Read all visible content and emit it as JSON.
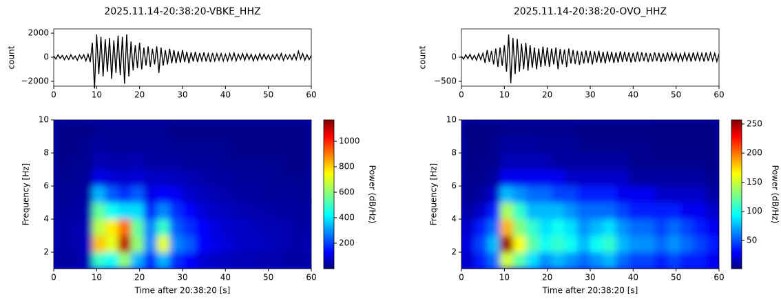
{
  "chart_data": [
    {
      "type": "line",
      "title": "2025.11.14-20:38:20-VBKE_HHZ",
      "ylabel": "count",
      "color": "#000000",
      "x": [
        0,
        0.5,
        1,
        1.5,
        2,
        2.5,
        3,
        3.5,
        4,
        4.5,
        5,
        5.5,
        6,
        6.5,
        7,
        7.5,
        8,
        8.5,
        9,
        9.5,
        10,
        10.5,
        11,
        11.5,
        12,
        12.5,
        13,
        13.5,
        14,
        14.5,
        15,
        15.5,
        16,
        16.5,
        17,
        17.5,
        18,
        18.5,
        19,
        19.5,
        20,
        20.5,
        21,
        21.5,
        22,
        22.5,
        23,
        23.5,
        24,
        24.5,
        25,
        25.5,
        26,
        26.5,
        27,
        27.5,
        28,
        28.5,
        29,
        29.5,
        30,
        30.5,
        31,
        31.5,
        32,
        32.5,
        33,
        33.5,
        34,
        34.5,
        35,
        35.5,
        36,
        36.5,
        37,
        37.5,
        38,
        38.5,
        39,
        39.5,
        40,
        40.5,
        41,
        41.5,
        42,
        42.5,
        43,
        43.5,
        44,
        44.5,
        45,
        45.5,
        46,
        46.5,
        47,
        47.5,
        48,
        48.5,
        49,
        49.5,
        50,
        50.5,
        51,
        51.5,
        52,
        52.5,
        53,
        53.5,
        54,
        54.5,
        55,
        55.5,
        56,
        56.5,
        57,
        57.5,
        58,
        58.5,
        59,
        59.5,
        60
      ],
      "values": [
        100,
        -150,
        200,
        -100,
        150,
        -200,
        120,
        -180,
        200,
        -150,
        100,
        -250,
        180,
        -120,
        200,
        -300,
        250,
        -400,
        1200,
        -2600,
        1900,
        -1400,
        1700,
        -1600,
        1500,
        -1200,
        1600,
        -1800,
        1400,
        -1300,
        1800,
        -1500,
        1700,
        -2200,
        1900,
        -1600,
        1300,
        -1100,
        1000,
        -900,
        1200,
        -1000,
        800,
        -700,
        900,
        -800,
        700,
        -600,
        900,
        -1300,
        800,
        -700,
        600,
        -600,
        700,
        -500,
        600,
        -500,
        500,
        -450,
        600,
        -400,
        450,
        -500,
        400,
        -350,
        450,
        -400,
        350,
        -300,
        400,
        -350,
        300,
        -400,
        350,
        -300,
        300,
        -250,
        300,
        -300,
        250,
        -300,
        300,
        -250,
        350,
        -300,
        250,
        -200,
        300,
        -250,
        300,
        -200,
        250,
        -300,
        200,
        -250,
        300,
        -200,
        250,
        -200,
        200,
        -250,
        200,
        -150,
        250,
        -200,
        300,
        -250,
        200,
        -150,
        200,
        -200,
        250,
        -200,
        500,
        -150,
        300,
        -250,
        200,
        -200,
        150
      ],
      "xlim": [
        0,
        60
      ],
      "ylim": [
        -2400,
        2350
      ],
      "xticks": [
        0,
        10,
        20,
        30,
        40,
        50,
        60
      ],
      "yticks": [
        {
          "value": -2000,
          "label": "−2000"
        },
        0,
        2000
      ]
    },
    {
      "type": "heatmap",
      "xlabel": "Time after 20:38:20 [s]",
      "ylabel": "Frequency [Hz]",
      "colormap": "jet",
      "xbins": [
        0,
        3,
        6,
        9,
        12,
        15,
        18,
        21,
        24,
        27,
        30,
        33,
        36,
        39,
        42,
        45,
        48,
        51,
        54,
        57,
        60
      ],
      "ybins": [
        1,
        2,
        3,
        4,
        5,
        6,
        7,
        8,
        9,
        10
      ],
      "z": [
        [
          30,
          40,
          60,
          500,
          450,
          600,
          350,
          200,
          350,
          200,
          150,
          100,
          80,
          70,
          60,
          60,
          50,
          50,
          40,
          40
        ],
        [
          40,
          50,
          70,
          800,
          700,
          1100,
          600,
          300,
          700,
          300,
          250,
          150,
          120,
          100,
          80,
          80,
          70,
          60,
          50,
          50
        ],
        [
          40,
          50,
          60,
          650,
          750,
          900,
          550,
          300,
          500,
          250,
          200,
          150,
          110,
          90,
          80,
          70,
          60,
          60,
          50,
          40
        ],
        [
          30,
          40,
          50,
          550,
          450,
          400,
          400,
          200,
          300,
          200,
          150,
          100,
          80,
          70,
          60,
          50,
          50,
          40,
          40,
          30
        ],
        [
          20,
          30,
          40,
          350,
          250,
          200,
          250,
          120,
          150,
          130,
          90,
          70,
          60,
          50,
          40,
          40,
          30,
          30,
          30,
          20
        ],
        [
          20,
          20,
          30,
          120,
          100,
          90,
          100,
          80,
          80,
          70,
          60,
          50,
          40,
          40,
          30,
          30,
          30,
          20,
          20,
          20
        ],
        [
          10,
          20,
          20,
          60,
          50,
          50,
          60,
          40,
          40,
          40,
          30,
          30,
          30,
          20,
          20,
          20,
          20,
          20,
          10,
          10
        ],
        [
          10,
          10,
          20,
          40,
          30,
          30,
          30,
          30,
          30,
          20,
          20,
          20,
          20,
          20,
          10,
          10,
          10,
          10,
          10,
          10
        ],
        [
          10,
          10,
          10,
          20,
          20,
          20,
          20,
          20,
          20,
          10,
          10,
          10,
          10,
          10,
          10,
          10,
          10,
          10,
          10,
          10
        ]
      ],
      "xlim": [
        0,
        60
      ],
      "ylim": [
        1,
        10
      ],
      "xticks": [
        0,
        10,
        20,
        30,
        40,
        50,
        60
      ],
      "yticks": [
        2,
        4,
        6,
        8,
        10
      ],
      "clim": [
        0,
        1168
      ],
      "cticks": [
        200,
        400,
        600,
        800,
        1000
      ],
      "colorbar_label": "Power (dB/Hz)"
    },
    {
      "type": "line",
      "title": "2025.11.14-20:38:20-OVO_HHZ",
      "ylabel": "count",
      "color": "#000000",
      "x": [
        0,
        0.5,
        1,
        1.5,
        2,
        2.5,
        3,
        3.5,
        4,
        4.5,
        5,
        5.5,
        6,
        6.5,
        7,
        7.5,
        8,
        8.5,
        9,
        9.5,
        10,
        10.5,
        11,
        11.5,
        12,
        12.5,
        13,
        13.5,
        14,
        14.5,
        15,
        15.5,
        16,
        16.5,
        17,
        17.5,
        18,
        18.5,
        19,
        19.5,
        20,
        20.5,
        21,
        21.5,
        22,
        22.5,
        23,
        23.5,
        24,
        24.5,
        25,
        25.5,
        26,
        26.5,
        27,
        27.5,
        28,
        28.5,
        29,
        29.5,
        30,
        30.5,
        31,
        31.5,
        32,
        32.5,
        33,
        33.5,
        34,
        34.5,
        35,
        35.5,
        36,
        36.5,
        37,
        37.5,
        38,
        38.5,
        39,
        39.5,
        40,
        40.5,
        41,
        41.5,
        42,
        42.5,
        43,
        43.5,
        44,
        44.5,
        45,
        45.5,
        46,
        46.5,
        47,
        47.5,
        48,
        48.5,
        49,
        49.5,
        50,
        50.5,
        51,
        51.5,
        52,
        52.5,
        53,
        53.5,
        54,
        54.5,
        55,
        55.5,
        56,
        56.5,
        57,
        57.5,
        58,
        58.5,
        59,
        59.5,
        60
      ],
      "values": [
        20,
        -40,
        50,
        -30,
        60,
        -50,
        40,
        -60,
        70,
        -50,
        80,
        -120,
        150,
        -100,
        130,
        -150,
        180,
        -200,
        200,
        -180,
        250,
        -300,
        470,
        -540,
        400,
        -350,
        380,
        -300,
        280,
        -250,
        300,
        -280,
        250,
        -220,
        200,
        -250,
        180,
        -200,
        220,
        -180,
        200,
        -200,
        180,
        -150,
        200,
        -250,
        170,
        -150,
        160,
        -200,
        180,
        -130,
        150,
        -140,
        130,
        -160,
        120,
        -130,
        140,
        -120,
        130,
        -150,
        120,
        -110,
        130,
        -120,
        110,
        -130,
        120,
        -100,
        110,
        -120,
        100,
        -110,
        120,
        -100,
        110,
        -90,
        100,
        -110,
        90,
        -100,
        110,
        -90,
        100,
        -80,
        90,
        -100,
        80,
        -90,
        100,
        -80,
        90,
        -100,
        80,
        -90,
        100,
        -80,
        90,
        -70,
        80,
        -90,
        70,
        -80,
        90,
        -70,
        80,
        -90,
        100,
        -80,
        90,
        -70,
        80,
        -90,
        100,
        -80,
        90,
        -70,
        80,
        -90,
        70
      ],
      "xlim": [
        0,
        60
      ],
      "ylim": [
        -600,
        586
      ],
      "xticks": [
        0,
        10,
        20,
        30,
        40,
        50,
        60
      ],
      "yticks": [
        {
          "value": -500,
          "label": "−500"
        },
        0
      ]
    },
    {
      "type": "heatmap",
      "xlabel": "Time after 20:38:20 [s]",
      "ylabel": "Frequency [Hz]",
      "colormap": "jet",
      "xbins": [
        0,
        3,
        6,
        9,
        12,
        15,
        18,
        21,
        24,
        27,
        30,
        33,
        36,
        39,
        42,
        45,
        48,
        51,
        54,
        57,
        60
      ],
      "ybins": [
        1,
        2,
        3,
        4,
        5,
        6,
        7,
        8,
        9,
        10
      ],
      "z": [
        [
          20,
          40,
          60,
          150,
          120,
          90,
          70,
          80,
          70,
          60,
          70,
          80,
          60,
          50,
          50,
          40,
          50,
          40,
          40,
          30
        ],
        [
          25,
          50,
          80,
          250,
          160,
          120,
          100,
          110,
          100,
          80,
          100,
          110,
          80,
          70,
          70,
          60,
          70,
          60,
          50,
          40
        ],
        [
          20,
          40,
          60,
          180,
          130,
          110,
          90,
          100,
          90,
          70,
          80,
          90,
          70,
          60,
          60,
          50,
          60,
          50,
          40,
          30
        ],
        [
          10,
          20,
          40,
          140,
          110,
          80,
          80,
          80,
          70,
          60,
          60,
          60,
          50,
          40,
          40,
          40,
          40,
          30,
          30,
          20
        ],
        [
          5,
          10,
          20,
          80,
          70,
          60,
          60,
          50,
          50,
          40,
          40,
          40,
          30,
          30,
          30,
          20,
          20,
          20,
          20,
          10
        ],
        [
          5,
          5,
          10,
          30,
          30,
          30,
          30,
          30,
          20,
          20,
          20,
          20,
          20,
          10,
          10,
          10,
          10,
          10,
          10,
          5
        ],
        [
          3,
          5,
          5,
          15,
          15,
          15,
          15,
          10,
          10,
          10,
          10,
          10,
          10,
          5,
          5,
          5,
          5,
          5,
          5,
          3
        ],
        [
          3,
          3,
          5,
          10,
          10,
          10,
          8,
          8,
          8,
          5,
          5,
          5,
          5,
          5,
          5,
          3,
          3,
          3,
          3,
          3
        ],
        [
          2,
          3,
          3,
          5,
          5,
          5,
          5,
          5,
          5,
          3,
          3,
          3,
          3,
          3,
          3,
          2,
          2,
          2,
          2,
          2
        ]
      ],
      "xlim": [
        0,
        60
      ],
      "ylim": [
        1,
        10
      ],
      "xticks": [
        0,
        10,
        20,
        30,
        40,
        50,
        60
      ],
      "yticks": [
        2,
        4,
        6,
        8,
        10
      ],
      "clim": [
        1.5,
        257
      ],
      "cticks": [
        50,
        100,
        150,
        200,
        250
      ],
      "colorbar_label": "Power (dB/Hz)"
    }
  ]
}
